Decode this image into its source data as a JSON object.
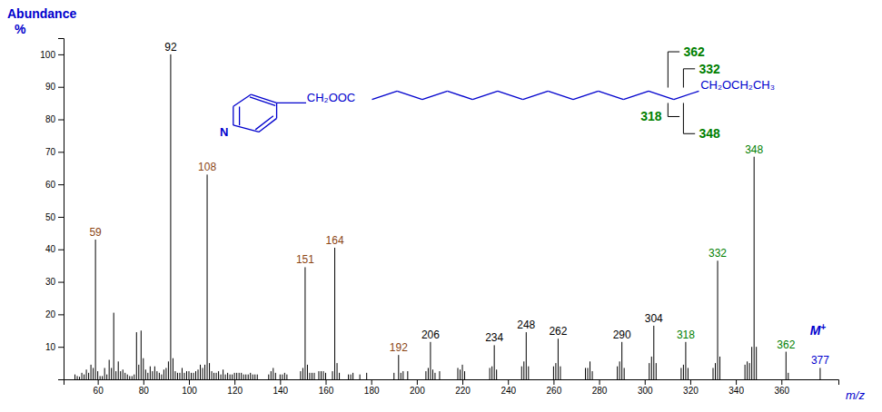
{
  "chart_data": {
    "type": "stem",
    "xlabel": "m/z",
    "ylabel": [
      "Abundance",
      "%"
    ],
    "color": "#000000",
    "xlim": [
      45,
      385
    ],
    "ylim": [
      0,
      105
    ],
    "xticks": [
      60,
      80,
      100,
      120,
      140,
      160,
      180,
      200,
      220,
      240,
      260,
      280,
      300,
      320,
      340,
      360
    ],
    "yticks": [
      10,
      20,
      30,
      40,
      50,
      60,
      70,
      80,
      90,
      100
    ],
    "x": [
      50,
      51,
      52,
      53,
      54,
      55,
      56,
      57,
      58,
      59,
      60,
      61,
      62,
      63,
      64,
      65,
      66,
      67,
      68,
      69,
      70,
      71,
      72,
      73,
      74,
      75,
      76,
      77,
      78,
      79,
      80,
      81,
      82,
      83,
      84,
      85,
      86,
      87,
      88,
      89,
      90,
      91,
      92,
      93,
      94,
      95,
      96,
      97,
      98,
      99,
      100,
      101,
      102,
      103,
      104,
      105,
      106,
      107,
      108,
      109,
      110,
      111,
      112,
      113,
      114,
      115,
      116,
      117,
      118,
      119,
      120,
      121,
      122,
      123,
      124,
      125,
      126,
      127,
      128,
      129,
      130,
      135,
      136,
      137,
      138,
      140,
      141,
      142,
      143,
      149,
      150,
      151,
      152,
      153,
      154,
      155,
      157,
      158,
      159,
      160,
      163,
      164,
      165,
      166,
      170,
      171,
      172,
      175,
      178,
      190,
      192,
      193,
      194,
      196,
      204,
      205,
      206,
      207,
      208,
      210,
      218,
      219,
      220,
      221,
      232,
      233,
      234,
      235,
      246,
      247,
      248,
      249,
      260,
      261,
      262,
      263,
      274,
      275,
      276,
      277,
      288,
      289,
      290,
      291,
      302,
      303,
      304,
      305,
      316,
      317,
      318,
      319,
      330,
      331,
      332,
      333,
      344,
      345,
      346,
      347,
      348,
      349,
      362,
      363,
      377
    ],
    "values": [
      1.5,
      1.0,
      0.8,
      2.0,
      1.5,
      3.0,
      2.0,
      4.5,
      3.5,
      43.0,
      2.5,
      1.0,
      1.0,
      3.5,
      1.5,
      6.0,
      3.5,
      20.5,
      2.5,
      5.5,
      2.5,
      3.0,
      2.0,
      1.5,
      1.0,
      1.0,
      1.5,
      14.5,
      4.5,
      15.0,
      6.5,
      3.0,
      2.0,
      4.0,
      2.5,
      4.0,
      2.5,
      2.0,
      1.5,
      3.0,
      3.5,
      5.5,
      100.0,
      6.5,
      2.5,
      2.0,
      2.0,
      3.5,
      2.0,
      2.5,
      2.5,
      2.0,
      2.0,
      2.5,
      3.0,
      4.5,
      3.5,
      4.5,
      63.0,
      5.0,
      2.5,
      2.0,
      2.0,
      2.5,
      1.5,
      3.0,
      1.5,
      2.0,
      1.5,
      1.5,
      2.0,
      2.0,
      2.0,
      2.0,
      1.5,
      1.5,
      1.5,
      2.0,
      1.5,
      1.5,
      1.5,
      1.5,
      2.5,
      3.5,
      2.0,
      1.5,
      1.5,
      2.0,
      1.5,
      2.5,
      3.5,
      34.5,
      4.5,
      2.0,
      2.0,
      2.0,
      2.5,
      2.5,
      2.5,
      2.0,
      2.5,
      40.5,
      5.0,
      2.0,
      1.5,
      1.5,
      2.0,
      1.5,
      2.0,
      2.0,
      7.5,
      2.0,
      2.5,
      2.5,
      2.5,
      3.5,
      11.5,
      3.0,
      2.0,
      2.5,
      3.5,
      3.0,
      4.5,
      2.5,
      3.5,
      4.0,
      10.5,
      3.0,
      4.0,
      5.5,
      14.5,
      4.0,
      4.0,
      5.0,
      12.5,
      4.0,
      3.5,
      3.5,
      5.5,
      2.5,
      4.0,
      5.5,
      11.5,
      3.5,
      5.0,
      7.0,
      16.5,
      5.0,
      3.5,
      4.5,
      11.5,
      3.5,
      3.5,
      5.0,
      36.5,
      7.0,
      4.5,
      5.5,
      5.0,
      10.0,
      68.5,
      10.0,
      8.5,
      2.0,
      3.5
    ],
    "annotations": [
      {
        "text": "59",
        "x": 59,
        "y": 43.0,
        "color": "#8B4513"
      },
      {
        "text": "92",
        "x": 92,
        "y": 100.0,
        "color": "#000000"
      },
      {
        "text": "108",
        "x": 108,
        "y": 63.0,
        "color": "#8B4513"
      },
      {
        "text": "151",
        "x": 151,
        "y": 34.5,
        "color": "#8B4513"
      },
      {
        "text": "164",
        "x": 164,
        "y": 40.5,
        "color": "#8B4513"
      },
      {
        "text": "192",
        "x": 192,
        "y": 7.5,
        "color": "#8B4513"
      },
      {
        "text": "206",
        "x": 206,
        "y": 11.5,
        "color": "#000000"
      },
      {
        "text": "234",
        "x": 234,
        "y": 10.5,
        "color": "#000000"
      },
      {
        "text": "248",
        "x": 248,
        "y": 14.5,
        "color": "#000000"
      },
      {
        "text": "262",
        "x": 262,
        "y": 12.5,
        "color": "#000000"
      },
      {
        "text": "290",
        "x": 290,
        "y": 11.5,
        "color": "#000000"
      },
      {
        "text": "304",
        "x": 304,
        "y": 16.5,
        "color": "#000000"
      },
      {
        "text": "318",
        "x": 318,
        "y": 11.5,
        "color": "#008000"
      },
      {
        "text": "332",
        "x": 332,
        "y": 36.5,
        "color": "#008000"
      },
      {
        "text": "348",
        "x": 348,
        "y": 68.5,
        "color": "#008000"
      },
      {
        "text": "362",
        "x": 362,
        "y": 8.5,
        "color": "#008000"
      },
      {
        "text": "377",
        "x": 377,
        "y": 3.5,
        "color": "#0000CD"
      },
      {
        "text": "M+",
        "x": 376,
        "y": 12,
        "color": "#0000CD"
      },
      {
        "text": "N",
        "color": "#0000CD"
      },
      {
        "text": "CH₂OOC",
        "color": "#0000CD"
      },
      {
        "text": "CH₂OCH₂CH₃",
        "color": "#0000CD"
      },
      {
        "text": "362",
        "color": "#008000"
      },
      {
        "text": "332",
        "color": "#008000"
      },
      {
        "text": "318",
        "color": "#008000"
      },
      {
        "text": "348",
        "color": "#008000"
      }
    ]
  }
}
